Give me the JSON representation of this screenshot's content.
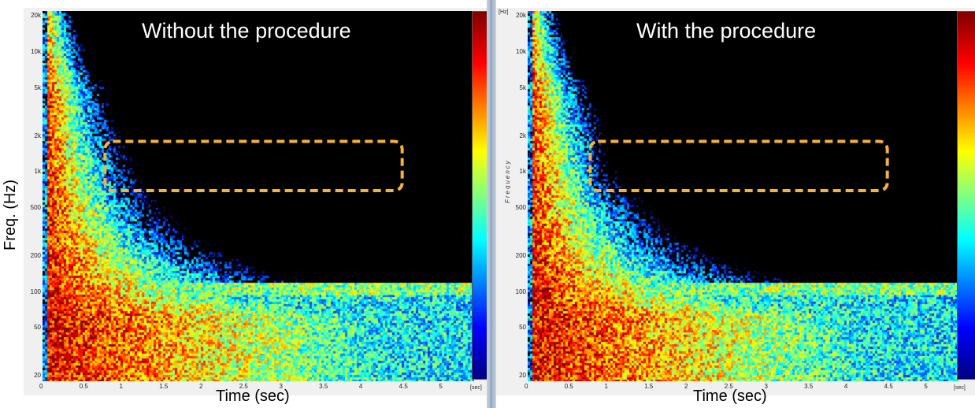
{
  "figure": {
    "ylabel": "Freq. (Hz)",
    "unit_hz": "[Hz]",
    "unit_sec": "[sec]",
    "frequency_word": "Frequency"
  },
  "colors": {
    "highlight_box": "#f5b13a",
    "background_panel": "#f0f0f0",
    "divider": "#7f96b2"
  },
  "chart_data": [
    {
      "type": "heatmap",
      "title": "Without the procedure",
      "xlabel": "Time (sec)",
      "ylabel": "Freq. (Hz)",
      "x_ticks": [
        "0",
        "0.5",
        "1",
        "1.5",
        "2",
        "2.5",
        "3",
        "3.5",
        "4",
        "4.5",
        "5"
      ],
      "y_ticks": [
        "20",
        "50",
        "100",
        "200",
        "500",
        "1k",
        "2k",
        "5k",
        "10k",
        "20k"
      ],
      "xlim": [
        0,
        5.4
      ],
      "ylim": [
        18,
        22000
      ],
      "y_scale": "log",
      "colormap": "jet",
      "highlight_region": {
        "t_start": 0.9,
        "t_end": 4.5,
        "f_low": 700,
        "f_high": 1800
      }
    },
    {
      "type": "heatmap",
      "title": "With the procedure",
      "xlabel": "Time (sec)",
      "ylabel": "Frequency",
      "x_ticks": [
        "0",
        "0.5",
        "1",
        "1.5",
        "2",
        "2.5",
        "3",
        "3.5",
        "4",
        "4.5",
        "5"
      ],
      "y_ticks": [
        "20",
        "50",
        "100",
        "200",
        "500",
        "1k",
        "2k",
        "5k",
        "10k",
        "20k"
      ],
      "xlim": [
        0,
        5.4
      ],
      "ylim": [
        18,
        22000
      ],
      "y_scale": "log",
      "colormap": "jet",
      "highlight_region": {
        "t_start": 0.9,
        "t_end": 4.5,
        "f_low": 700,
        "f_high": 1800
      }
    }
  ]
}
